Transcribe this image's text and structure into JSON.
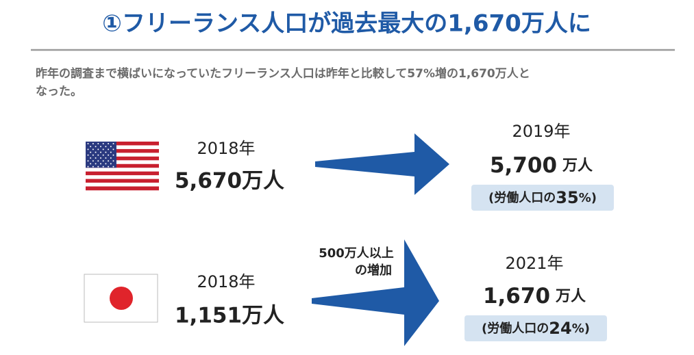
{
  "header": {
    "title": "①フリーランス人口が過去最大の1,670万人に",
    "description": [
      "昨年の調査まで横ばいになっていたフリーランス人口は昨年と比較して57%増の1,670万人と",
      "なった。"
    ]
  },
  "usa": {
    "before": {
      "year": "2018年",
      "population": "5,670万人"
    },
    "after": {
      "year": "2019年",
      "population": "5,700",
      "unit": "万人",
      "share_prefix": "(労働人口の",
      "share": "35",
      "share_suffix": "%)"
    }
  },
  "japan": {
    "before": {
      "year": "2018年",
      "population": "1,151万人"
    },
    "after": {
      "year": "2021年",
      "population": "1,670",
      "unit": "万人",
      "share_prefix": "(労働人口の",
      "share": "24",
      "share_suffix": "%)"
    }
  },
  "annotation": [
    "500万人以上",
    "の増加"
  ]
}
